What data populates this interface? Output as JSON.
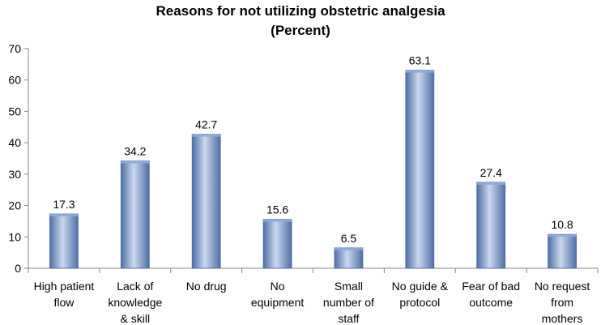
{
  "chart_data": {
    "type": "bar",
    "title": "Reasons for not utilizing obstetric analgesia",
    "subtitle": "(Percent)",
    "xlabel": "",
    "ylabel": "",
    "ylim": [
      0,
      70
    ],
    "yticks": [
      0,
      10,
      20,
      30,
      40,
      50,
      60,
      70
    ],
    "grid": false,
    "legend": "none",
    "categories": [
      [
        "High patient",
        "flow"
      ],
      [
        "Lack of",
        "knowledge",
        "& skill"
      ],
      [
        "No drug"
      ],
      [
        "No",
        "equipment"
      ],
      [
        "Small",
        "number of",
        "staff"
      ],
      [
        "No guide &",
        "protocol"
      ],
      [
        "Fear of bad",
        "outcome"
      ],
      [
        "No request",
        "from",
        "mothers"
      ]
    ],
    "values": [
      17.3,
      34.2,
      42.7,
      15.6,
      6.5,
      63.1,
      27.4,
      10.8
    ],
    "value_labels": [
      "17.3",
      "34.2",
      "42.7",
      "15.6",
      "6.5",
      "63.1",
      "27.4",
      "10.8"
    ],
    "colors": {
      "bar_light": "#c9d8ee",
      "bar_mid": "#8eaad8",
      "bar_dark": "#4f6fa6",
      "bar_edge": "#4a6aa0",
      "axis": "#868686"
    }
  }
}
